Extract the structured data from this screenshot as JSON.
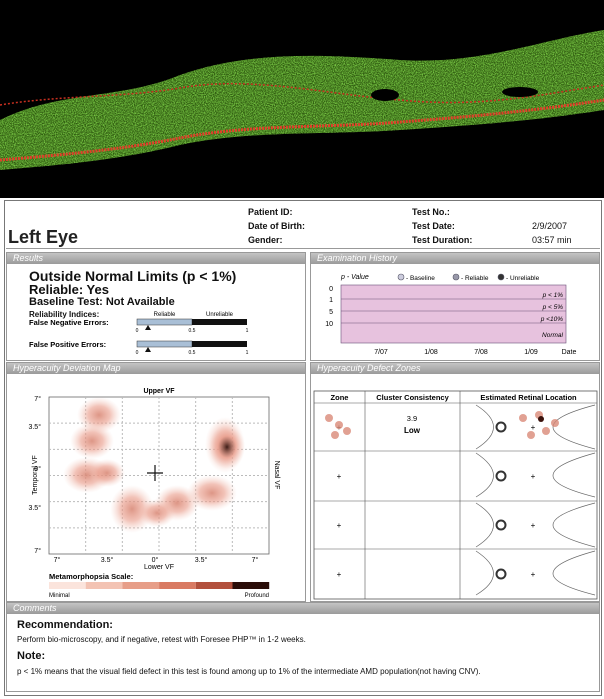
{
  "header": {
    "eye": "Left Eye",
    "left_labels": [
      "Patient ID:",
      "Date of Birth:",
      "Gender:"
    ],
    "right_labels": [
      "Test No.:",
      "Test Date:",
      "Test Duration:"
    ],
    "test_date": "2/9/2007",
    "test_duration": "03:57 min"
  },
  "results": {
    "title": "Results",
    "finding": "Outside Normal Limits (p < 1%)",
    "reliable": "Reliable: Yes",
    "baseline": "Baseline Test: Not Available",
    "reliability_indices": "Reliability Indices:",
    "zones": [
      "Reliable",
      "Unreliable"
    ],
    "indices": [
      {
        "label": "False Negative Errors:",
        "value": 0.1
      },
      {
        "label": "False Positive Errors:",
        "value": 0.1
      }
    ],
    "scale": [
      0,
      0.5,
      1
    ]
  },
  "history": {
    "title": "Examination History",
    "y_title": "p - Value",
    "legend": [
      "- Baseline",
      "- Reliable",
      "- Unreliable"
    ],
    "y_labels": [
      "0",
      "1",
      "5",
      "10"
    ],
    "bands": [
      "p < 1%",
      "p < 5%",
      "p <10%",
      "Normal"
    ],
    "x_labels": [
      "7/07",
      "1/08",
      "7/08",
      "1/09"
    ],
    "x_title": "Date"
  },
  "map": {
    "title": "Hyperacuity Deviation Map",
    "top": "Upper VF",
    "bottom": "Lower VF",
    "left": "Temporal VF",
    "right": "Nasal VF",
    "y_ticks": [
      "7°",
      "3.5°",
      "0°",
      "3.5°",
      "7°"
    ],
    "x_ticks": [
      "7°",
      "3.5°",
      "0°",
      "3.5°",
      "7°"
    ],
    "scale_title": "Metamorphopsia Scale:",
    "scale_min": "Minimal",
    "scale_max": "Profound"
  },
  "zones": {
    "title": "Hyperacuity Defect Zones",
    "columns": [
      "Zone",
      "Cluster Consistency",
      "Estimated Retinal Location"
    ],
    "consistency": "3.9",
    "level": "Low"
  },
  "comments": {
    "title": "Comments",
    "recommendation_title": "Recommendation:",
    "recommendation": "Perform bio-microscopy, and if negative, retest with Foresee PHP™ in 1-2 weeks.",
    "note_title": "Note:",
    "note": "p < 1% means that the visual field defect in this test is found among up to 1% of the intermediate AMD population(not having CNV)."
  }
}
